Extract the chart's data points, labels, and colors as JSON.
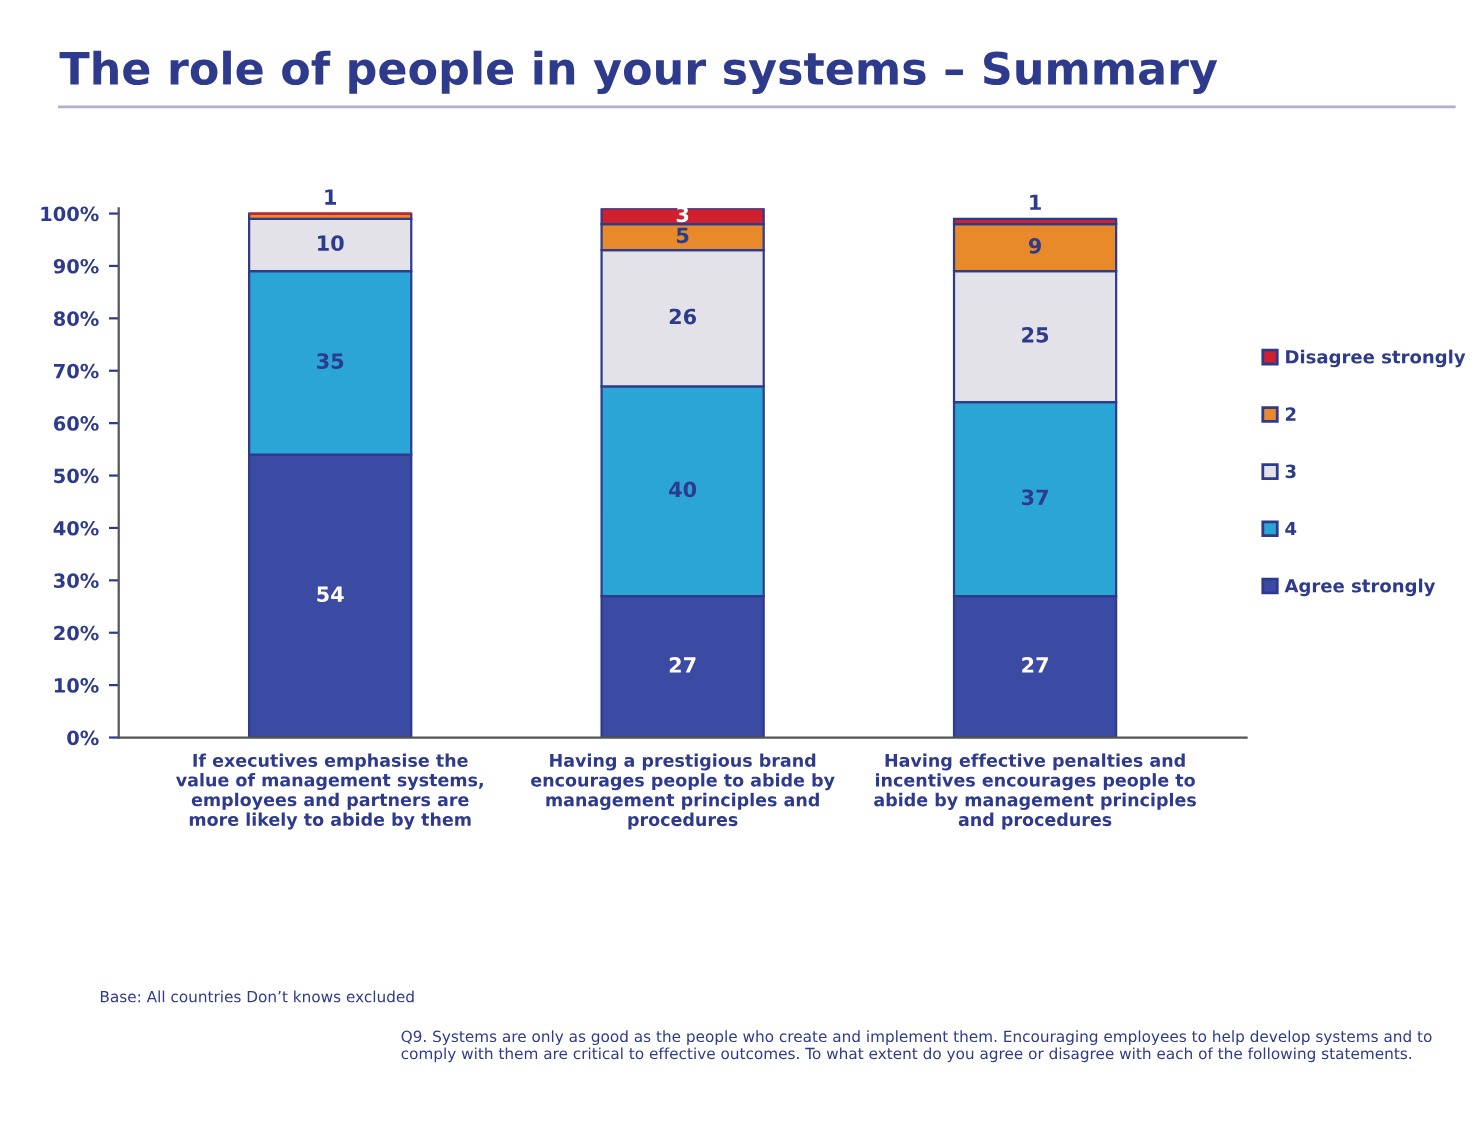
{
  "chart_data": {
    "type": "bar",
    "stacked": true,
    "title": "The role of people in your systems – Summary",
    "categories": [
      "If executives emphasise the value of management systems, employees and partners are more likely to abide by them",
      "Having a prestigious brand encourages people to abide by management principles and procedures",
      "Having effective penalties and incentives encourages people to abide by management principles and procedures"
    ],
    "series": [
      {
        "name": "Agree strongly",
        "color": "#3b4aa3",
        "values": [
          54,
          27,
          27
        ],
        "value_labels": [
          "54",
          "27",
          "27"
        ]
      },
      {
        "name": "4",
        "color": "#2aa5d6",
        "values": [
          35,
          40,
          37
        ],
        "value_labels": [
          "35",
          "40",
          "37"
        ]
      },
      {
        "name": "3",
        "color": "#e2e2e8",
        "values": [
          10,
          26,
          25
        ],
        "value_labels": [
          "10",
          "26",
          "25"
        ]
      },
      {
        "name": "2",
        "color": "#e8892a",
        "values": [
          1,
          5,
          9
        ],
        "value_labels": [
          "1",
          "5",
          "9"
        ]
      },
      {
        "name": "Disagree strongly",
        "color": "#d0202e",
        "values": [
          0,
          3,
          1
        ],
        "value_labels": [
          null,
          "3",
          "1"
        ]
      }
    ],
    "ylim": [
      0,
      101
    ],
    "yticks": [
      {
        "value": 0,
        "label": "0%"
      },
      {
        "value": 10,
        "label": "10%"
      },
      {
        "value": 20,
        "label": "20%"
      },
      {
        "value": 30,
        "label": "30%"
      },
      {
        "value": 40,
        "label": "40%"
      },
      {
        "value": 50,
        "label": "50%"
      },
      {
        "value": 60,
        "label": "60%"
      },
      {
        "value": 70,
        "label": "70%"
      },
      {
        "value": 80,
        "label": "80%"
      },
      {
        "value": 90,
        "label": "90%"
      },
      {
        "value": 100,
        "label": "100%"
      }
    ],
    "legend": "right",
    "grid": false,
    "annotations": [
      "Base: All countries Don’t knows excluded",
      "Q9. Systems are only as good as the people who create and implement them. Encouraging employees to help develop systems and to comply with them are critical to effective outcomes. To what extent do you agree or disagree with each of the following statements."
    ]
  }
}
